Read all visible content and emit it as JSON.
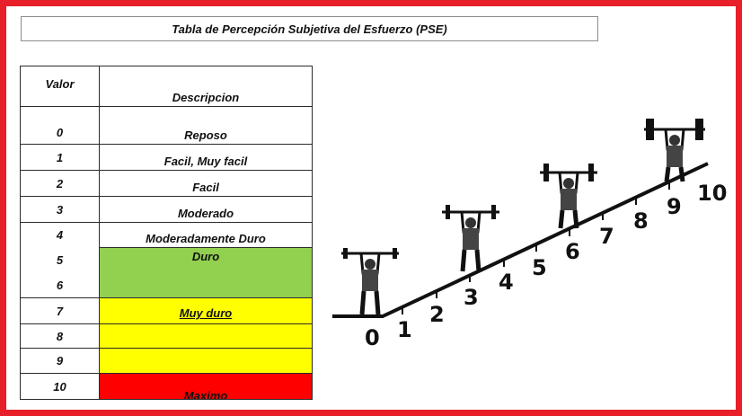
{
  "title": "Tabla de Percepción Subjetiva del Esfuerzo (PSE)",
  "table": {
    "header_value": "Valor",
    "header_description": "Descripcion",
    "rows": [
      {
        "value": "0",
        "description": "Reposo"
      },
      {
        "value": "1",
        "description": "Facil, Muy facil"
      },
      {
        "value": "2",
        "description": "Facil"
      },
      {
        "value": "3",
        "description": "Moderado"
      },
      {
        "value": "4",
        "description": "Moderadamente Duro"
      },
      {
        "value": "5",
        "description": "Duro"
      },
      {
        "value": "6",
        "description": ""
      },
      {
        "value": "7",
        "description": "Muy duro"
      },
      {
        "value": "8",
        "description": ""
      },
      {
        "value": "9",
        "description": ""
      },
      {
        "value": "10",
        "description": "Maximo"
      }
    ]
  },
  "illustration": {
    "scale_numbers": [
      "0",
      "1",
      "2",
      "3",
      "4",
      "5",
      "6",
      "7",
      "8",
      "9",
      "10"
    ]
  },
  "colors": {
    "frame": "#e8202a",
    "green": "#92d050",
    "yellow": "#ffff00",
    "red": "#ff0000"
  }
}
